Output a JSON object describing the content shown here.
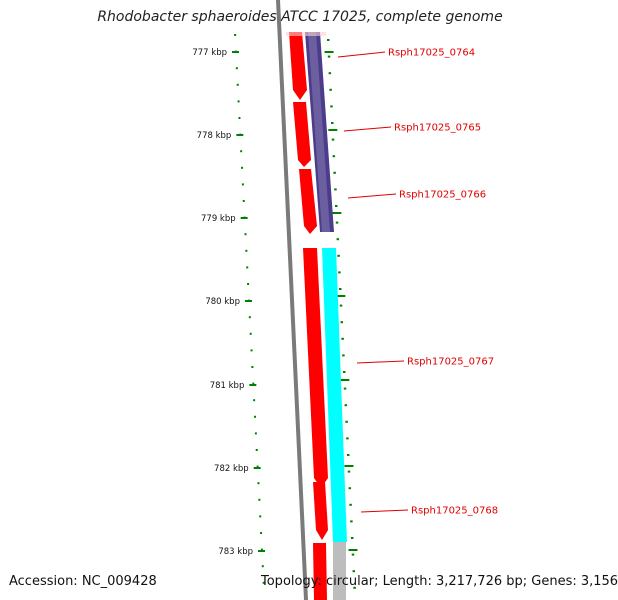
{
  "title": "Rhodobacter sphaeroides ATCC 17025, complete genome",
  "accession": "Accession: NC_009428",
  "topology": "Topology: circular; Length: 3,217,726 bp; Genes: 3,156",
  "colors": {
    "backbone": "#7a7a7a",
    "tick": "#008000",
    "cds": "#ff0000",
    "label": "#e00000",
    "operon_a": "#4b3c8c",
    "operon_b": "#00ffff",
    "operon_c": "#bdbdbd"
  },
  "scale": {
    "ticks": [
      "777 kbp",
      "778 kbp",
      "779 kbp",
      "780 kbp",
      "781 kbp",
      "782 kbp",
      "783 kbp"
    ]
  },
  "genes": [
    {
      "label": "Rsph17025_0764"
    },
    {
      "label": "Rsph17025_0765"
    },
    {
      "label": "Rsph17025_0766"
    },
    {
      "label": "Rsph17025_0767"
    },
    {
      "label": "Rsph17025_0768"
    }
  ]
}
